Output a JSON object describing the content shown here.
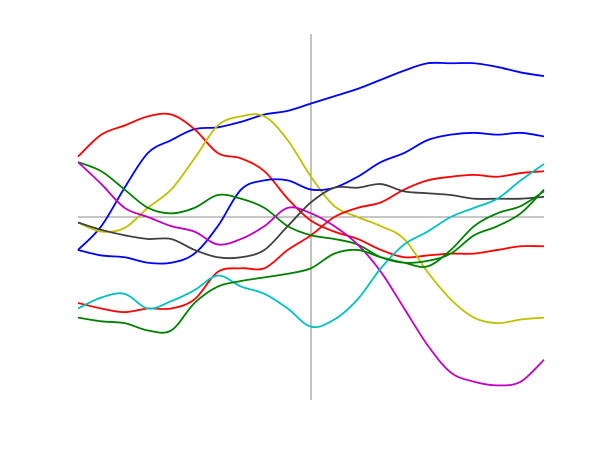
{
  "chart_data": {
    "type": "line",
    "title": "",
    "xlabel": "",
    "ylabel": "",
    "grid": false,
    "legend": "none",
    "xlim": [
      -1,
      1
    ],
    "ylim": [
      -1,
      1
    ],
    "axes_through_origin": true,
    "x": [
      -1.0,
      -0.9,
      -0.8,
      -0.7,
      -0.6,
      -0.5,
      -0.4,
      -0.3,
      -0.2,
      -0.1,
      0.0,
      0.1,
      0.2,
      0.3,
      0.4,
      0.5,
      0.6,
      0.7,
      0.8,
      0.9,
      1.0
    ],
    "series": [
      {
        "color": "#0000ff",
        "values": [
          -0.18,
          -0.05,
          0.16,
          0.35,
          0.42,
          0.48,
          0.49,
          0.52,
          0.56,
          0.58,
          0.62,
          0.66,
          0.7,
          0.75,
          0.8,
          0.84,
          0.84,
          0.84,
          0.82,
          0.79,
          0.77
        ]
      },
      {
        "color": "#ff0000",
        "values": [
          0.33,
          0.45,
          0.5,
          0.55,
          0.56,
          0.48,
          0.35,
          0.32,
          0.25,
          0.1,
          -0.02,
          -0.08,
          -0.12,
          -0.18,
          -0.22,
          -0.21,
          -0.2,
          -0.2,
          -0.18,
          -0.16,
          -0.16
        ]
      },
      {
        "color": "#c0c000",
        "values": [
          -0.03,
          -0.08,
          -0.06,
          0.05,
          0.15,
          0.32,
          0.5,
          0.55,
          0.55,
          0.42,
          0.22,
          0.06,
          0.0,
          -0.05,
          -0.12,
          -0.3,
          -0.45,
          -0.55,
          -0.58,
          -0.56,
          -0.55
        ]
      },
      {
        "color": "#0000ff",
        "values": [
          -0.18,
          -0.21,
          -0.22,
          -0.25,
          -0.25,
          -0.2,
          -0.05,
          0.15,
          0.2,
          0.2,
          0.15,
          0.16,
          0.22,
          0.3,
          0.35,
          0.42,
          0.45,
          0.46,
          0.45,
          0.46,
          0.44
        ]
      },
      {
        "color": "#ff0000",
        "values": [
          -0.47,
          -0.5,
          -0.52,
          -0.5,
          -0.5,
          -0.45,
          -0.3,
          -0.28,
          -0.28,
          -0.18,
          -0.1,
          0.0,
          0.05,
          0.08,
          0.15,
          0.2,
          0.22,
          0.23,
          0.22,
          0.24,
          0.25
        ]
      },
      {
        "color": "#008000",
        "values": [
          0.3,
          0.25,
          0.15,
          0.05,
          0.02,
          0.05,
          0.12,
          0.1,
          0.05,
          -0.05,
          -0.1,
          -0.12,
          -0.15,
          -0.22,
          -0.25,
          -0.24,
          -0.2,
          -0.1,
          -0.05,
          0.02,
          0.15
        ]
      },
      {
        "color": "#c000c0",
        "values": [
          0.3,
          0.18,
          0.05,
          0.0,
          -0.05,
          -0.08,
          -0.15,
          -0.12,
          -0.05,
          0.05,
          0.02,
          -0.05,
          -0.15,
          -0.3,
          -0.5,
          -0.7,
          -0.85,
          -0.9,
          -0.92,
          -0.9,
          -0.78
        ]
      },
      {
        "color": "#404040",
        "values": [
          -0.03,
          -0.07,
          -0.1,
          -0.12,
          -0.12,
          -0.18,
          -0.22,
          -0.22,
          -0.18,
          -0.05,
          0.08,
          0.16,
          0.16,
          0.18,
          0.14,
          0.13,
          0.12,
          0.1,
          0.1,
          0.1,
          0.11
        ]
      },
      {
        "color": "#00c0c0",
        "values": [
          -0.5,
          -0.44,
          -0.42,
          -0.5,
          -0.46,
          -0.4,
          -0.32,
          -0.38,
          -0.42,
          -0.5,
          -0.6,
          -0.56,
          -0.45,
          -0.28,
          -0.15,
          -0.08,
          0.0,
          0.05,
          0.1,
          0.2,
          0.29
        ]
      },
      {
        "color": "#008000",
        "values": [
          -0.55,
          -0.57,
          -0.58,
          -0.62,
          -0.62,
          -0.47,
          -0.38,
          -0.35,
          -0.33,
          -0.31,
          -0.28,
          -0.2,
          -0.18,
          -0.22,
          -0.25,
          -0.27,
          -0.18,
          -0.05,
          0.02,
          0.06,
          0.14
        ]
      }
    ]
  }
}
